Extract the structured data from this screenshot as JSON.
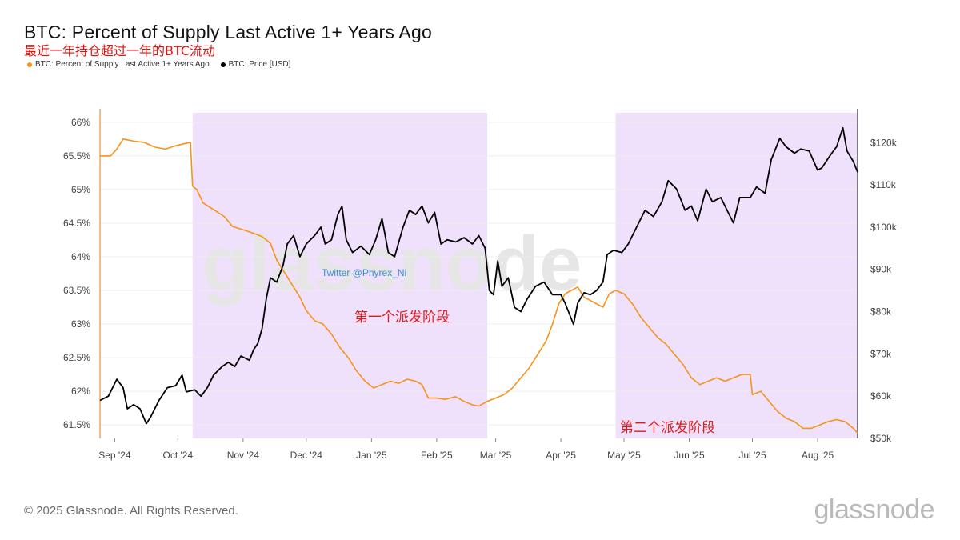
{
  "header": {
    "title": "BTC: Percent of Supply Last Active 1+ Years Ago",
    "subtitle": "最近一年持仓超过一年的BTC流动"
  },
  "legend": [
    {
      "label": "BTC: Percent of Supply Last Active 1+ Years Ago",
      "color": "#f7931a"
    },
    {
      "label": "BTC: Price [USD]",
      "color": "#000000"
    }
  ],
  "footer": {
    "copyright": "© 2025 Glassnode. All Rights Reserved.",
    "brand": "glassnode"
  },
  "chart_data": {
    "type": "line",
    "x_start": "2024-08-25",
    "x_end": "2025-08-20",
    "x_tick_labels": [
      {
        "label": "Sep '24",
        "date": "2024-09-01"
      },
      {
        "label": "Oct '24",
        "date": "2024-10-01"
      },
      {
        "label": "Nov '24",
        "date": "2024-11-01"
      },
      {
        "label": "Dec '24",
        "date": "2024-12-01"
      },
      {
        "label": "Jan '25",
        "date": "2025-01-01"
      },
      {
        "label": "Feb '25",
        "date": "2025-02-01"
      },
      {
        "label": "Mar '25",
        "date": "2025-03-01"
      },
      {
        "label": "Apr '25",
        "date": "2025-04-01"
      },
      {
        "label": "May '25",
        "date": "2025-05-01"
      },
      {
        "label": "Jun '25",
        "date": "2025-06-01"
      },
      {
        "label": "Jul '25",
        "date": "2025-07-01"
      },
      {
        "label": "Aug '25",
        "date": "2025-08-01"
      }
    ],
    "y_left": {
      "ylim": [
        61.3,
        66.2
      ],
      "ticks": [
        61.5,
        62,
        62.5,
        63,
        63.5,
        64,
        64.5,
        65,
        65.5,
        66
      ],
      "tick_labels": [
        "61.5%",
        "62%",
        "62.5%",
        "63%",
        "63.5%",
        "64%",
        "64.5%",
        "65%",
        "65.5%",
        "66%"
      ]
    },
    "y_right": {
      "ylim": [
        50000,
        128000
      ],
      "ticks": [
        50000,
        60000,
        70000,
        80000,
        90000,
        100000,
        110000,
        120000
      ],
      "tick_labels": [
        "$50k",
        "$60k",
        "$70k",
        "$80k",
        "$90k",
        "$100k",
        "$110k",
        "$120k"
      ]
    },
    "series": [
      {
        "name": "BTC: Percent of Supply Last Active 1+ Years Ago",
        "axis": "left",
        "color": "#f7931a",
        "points": [
          [
            "2024-08-25",
            65.5
          ],
          [
            "2024-08-30",
            65.5
          ],
          [
            "2024-09-02",
            65.6
          ],
          [
            "2024-09-05",
            65.75
          ],
          [
            "2024-09-10",
            65.72
          ],
          [
            "2024-09-15",
            65.7
          ],
          [
            "2024-09-20",
            65.63
          ],
          [
            "2024-09-25",
            65.6
          ],
          [
            "2024-09-30",
            65.65
          ],
          [
            "2024-10-04",
            65.68
          ],
          [
            "2024-10-07",
            65.7
          ],
          [
            "2024-10-08",
            65.05
          ],
          [
            "2024-10-10",
            65.0
          ],
          [
            "2024-10-13",
            64.8
          ],
          [
            "2024-10-18",
            64.7
          ],
          [
            "2024-10-23",
            64.6
          ],
          [
            "2024-10-27",
            64.45
          ],
          [
            "2024-11-01",
            64.4
          ],
          [
            "2024-11-06",
            64.35
          ],
          [
            "2024-11-10",
            64.3
          ],
          [
            "2024-11-14",
            64.2
          ],
          [
            "2024-11-17",
            63.95
          ],
          [
            "2024-11-20",
            63.8
          ],
          [
            "2024-11-24",
            63.6
          ],
          [
            "2024-11-28",
            63.4
          ],
          [
            "2024-12-01",
            63.2
          ],
          [
            "2024-12-05",
            63.05
          ],
          [
            "2024-12-09",
            63.0
          ],
          [
            "2024-12-13",
            62.85
          ],
          [
            "2024-12-17",
            62.65
          ],
          [
            "2024-12-21",
            62.5
          ],
          [
            "2024-12-25",
            62.3
          ],
          [
            "2024-12-29",
            62.15
          ],
          [
            "2025-01-02",
            62.05
          ],
          [
            "2025-01-06",
            62.1
          ],
          [
            "2025-01-10",
            62.15
          ],
          [
            "2025-01-14",
            62.12
          ],
          [
            "2025-01-18",
            62.18
          ],
          [
            "2025-01-22",
            62.15
          ],
          [
            "2025-01-25",
            62.1
          ],
          [
            "2025-01-28",
            61.9
          ],
          [
            "2025-02-01",
            61.9
          ],
          [
            "2025-02-05",
            61.88
          ],
          [
            "2025-02-10",
            61.92
          ],
          [
            "2025-02-14",
            61.85
          ],
          [
            "2025-02-18",
            61.8
          ],
          [
            "2025-02-21",
            61.78
          ],
          [
            "2025-02-25",
            61.85
          ],
          [
            "2025-03-01",
            61.9
          ],
          [
            "2025-03-05",
            61.95
          ],
          [
            "2025-03-09",
            62.05
          ],
          [
            "2025-03-13",
            62.2
          ],
          [
            "2025-03-17",
            62.35
          ],
          [
            "2025-03-21",
            62.55
          ],
          [
            "2025-03-25",
            62.75
          ],
          [
            "2025-03-28",
            63.0
          ],
          [
            "2025-03-31",
            63.3
          ],
          [
            "2025-04-03",
            63.45
          ],
          [
            "2025-04-06",
            63.5
          ],
          [
            "2025-04-09",
            63.55
          ],
          [
            "2025-04-12",
            63.4
          ],
          [
            "2025-04-15",
            63.35
          ],
          [
            "2025-04-18",
            63.3
          ],
          [
            "2025-04-21",
            63.25
          ],
          [
            "2025-04-24",
            63.45
          ],
          [
            "2025-04-27",
            63.5
          ],
          [
            "2025-05-01",
            63.45
          ],
          [
            "2025-05-05",
            63.3
          ],
          [
            "2025-05-09",
            63.1
          ],
          [
            "2025-05-13",
            62.95
          ],
          [
            "2025-05-17",
            62.8
          ],
          [
            "2025-05-21",
            62.7
          ],
          [
            "2025-05-25",
            62.55
          ],
          [
            "2025-05-29",
            62.4
          ],
          [
            "2025-06-02",
            62.2
          ],
          [
            "2025-06-06",
            62.1
          ],
          [
            "2025-06-10",
            62.15
          ],
          [
            "2025-06-14",
            62.2
          ],
          [
            "2025-06-18",
            62.15
          ],
          [
            "2025-06-22",
            62.2
          ],
          [
            "2025-06-26",
            62.25
          ],
          [
            "2025-06-30",
            62.25
          ],
          [
            "2025-07-01",
            61.95
          ],
          [
            "2025-07-05",
            62.0
          ],
          [
            "2025-07-09",
            61.85
          ],
          [
            "2025-07-13",
            61.7
          ],
          [
            "2025-07-17",
            61.6
          ],
          [
            "2025-07-21",
            61.55
          ],
          [
            "2025-07-25",
            61.45
          ],
          [
            "2025-07-29",
            61.45
          ],
          [
            "2025-08-02",
            61.5
          ],
          [
            "2025-08-06",
            61.55
          ],
          [
            "2025-08-10",
            61.58
          ],
          [
            "2025-08-14",
            61.55
          ],
          [
            "2025-08-18",
            61.45
          ],
          [
            "2025-08-20",
            61.38
          ]
        ]
      },
      {
        "name": "BTC: Price [USD]",
        "axis": "right",
        "color": "#000000",
        "points": [
          [
            "2024-08-25",
            59000
          ],
          [
            "2024-08-29",
            60000
          ],
          [
            "2024-09-02",
            64000
          ],
          [
            "2024-09-05",
            62000
          ],
          [
            "2024-09-07",
            57000
          ],
          [
            "2024-09-10",
            58000
          ],
          [
            "2024-09-13",
            57000
          ],
          [
            "2024-09-16",
            53500
          ],
          [
            "2024-09-18",
            55000
          ],
          [
            "2024-09-22",
            59000
          ],
          [
            "2024-09-26",
            62000
          ],
          [
            "2024-09-30",
            62500
          ],
          [
            "2024-10-03",
            65000
          ],
          [
            "2024-10-05",
            61000
          ],
          [
            "2024-10-09",
            61500
          ],
          [
            "2024-10-12",
            60000
          ],
          [
            "2024-10-15",
            62000
          ],
          [
            "2024-10-18",
            65000
          ],
          [
            "2024-10-22",
            67000
          ],
          [
            "2024-10-25",
            68000
          ],
          [
            "2024-10-28",
            67000
          ],
          [
            "2024-10-31",
            69500
          ],
          [
            "2024-11-04",
            68500
          ],
          [
            "2024-11-06",
            71000
          ],
          [
            "2024-11-08",
            72500
          ],
          [
            "2024-11-10",
            76000
          ],
          [
            "2024-11-12",
            83000
          ],
          [
            "2024-11-14",
            88000
          ],
          [
            "2024-11-17",
            87000
          ],
          [
            "2024-11-20",
            91000
          ],
          [
            "2024-11-22",
            96000
          ],
          [
            "2024-11-25",
            98000
          ],
          [
            "2024-11-28",
            93000
          ],
          [
            "2024-12-01",
            96000
          ],
          [
            "2024-12-05",
            98000
          ],
          [
            "2024-12-08",
            100000
          ],
          [
            "2024-12-10",
            96000
          ],
          [
            "2024-12-13",
            97000
          ],
          [
            "2024-12-16",
            103000
          ],
          [
            "2024-12-18",
            105000
          ],
          [
            "2024-12-20",
            97000
          ],
          [
            "2024-12-23",
            94000
          ],
          [
            "2024-12-27",
            95500
          ],
          [
            "2024-12-31",
            93500
          ],
          [
            "2025-01-03",
            97000
          ],
          [
            "2025-01-06",
            102000
          ],
          [
            "2025-01-09",
            94000
          ],
          [
            "2025-01-12",
            93000
          ],
          [
            "2025-01-16",
            100000
          ],
          [
            "2025-01-19",
            104000
          ],
          [
            "2025-01-22",
            103000
          ],
          [
            "2025-01-25",
            105000
          ],
          [
            "2025-01-28",
            101000
          ],
          [
            "2025-01-31",
            103500
          ],
          [
            "2025-02-03",
            96000
          ],
          [
            "2025-02-06",
            97000
          ],
          [
            "2025-02-10",
            96500
          ],
          [
            "2025-02-14",
            97500
          ],
          [
            "2025-02-18",
            96000
          ],
          [
            "2025-02-21",
            98000
          ],
          [
            "2025-02-24",
            95000
          ],
          [
            "2025-02-26",
            85000
          ],
          [
            "2025-02-28",
            84000
          ],
          [
            "2025-03-02",
            92000
          ],
          [
            "2025-03-04",
            86000
          ],
          [
            "2025-03-07",
            88000
          ],
          [
            "2025-03-10",
            81000
          ],
          [
            "2025-03-13",
            80000
          ],
          [
            "2025-03-16",
            83000
          ],
          [
            "2025-03-20",
            86000
          ],
          [
            "2025-03-24",
            87000
          ],
          [
            "2025-03-28",
            84000
          ],
          [
            "2025-04-01",
            84000
          ],
          [
            "2025-04-03",
            82000
          ],
          [
            "2025-04-07",
            77000
          ],
          [
            "2025-04-09",
            82000
          ],
          [
            "2025-04-12",
            84500
          ],
          [
            "2025-04-15",
            84000
          ],
          [
            "2025-04-18",
            85000
          ],
          [
            "2025-04-21",
            87000
          ],
          [
            "2025-04-23",
            93500
          ],
          [
            "2025-04-26",
            94500
          ],
          [
            "2025-04-30",
            94000
          ],
          [
            "2025-05-03",
            96000
          ],
          [
            "2025-05-08",
            101000
          ],
          [
            "2025-05-11",
            104000
          ],
          [
            "2025-05-15",
            102500
          ],
          [
            "2025-05-19",
            106000
          ],
          [
            "2025-05-22",
            111000
          ],
          [
            "2025-05-26",
            109000
          ],
          [
            "2025-05-30",
            104000
          ],
          [
            "2025-06-02",
            105000
          ],
          [
            "2025-06-05",
            101500
          ],
          [
            "2025-06-09",
            109000
          ],
          [
            "2025-06-12",
            106000
          ],
          [
            "2025-06-16",
            107000
          ],
          [
            "2025-06-20",
            103000
          ],
          [
            "2025-06-22",
            101000
          ],
          [
            "2025-06-25",
            107000
          ],
          [
            "2025-06-30",
            107000
          ],
          [
            "2025-07-03",
            109500
          ],
          [
            "2025-07-07",
            108000
          ],
          [
            "2025-07-10",
            116000
          ],
          [
            "2025-07-14",
            121000
          ],
          [
            "2025-07-17",
            119000
          ],
          [
            "2025-07-21",
            117500
          ],
          [
            "2025-07-24",
            118500
          ],
          [
            "2025-07-28",
            118000
          ],
          [
            "2025-08-01",
            113500
          ],
          [
            "2025-08-03",
            114000
          ],
          [
            "2025-08-07",
            117000
          ],
          [
            "2025-08-10",
            119000
          ],
          [
            "2025-08-13",
            123500
          ],
          [
            "2025-08-15",
            118000
          ],
          [
            "2025-08-18",
            115500
          ],
          [
            "2025-08-20",
            113000
          ]
        ]
      }
    ],
    "shaded_regions": [
      {
        "start": "2024-10-08",
        "end": "2025-02-25",
        "color": "#efe1fb"
      },
      {
        "start": "2025-04-27",
        "end": "2025-08-20",
        "color": "#efe1fb"
      }
    ],
    "annotations": {
      "phase_one": "第一个派发阶段",
      "phase_two": "第二个派发阶段",
      "credit": "Twitter @Phyrex_Ni"
    },
    "watermark": "glassnode",
    "grid": true
  }
}
